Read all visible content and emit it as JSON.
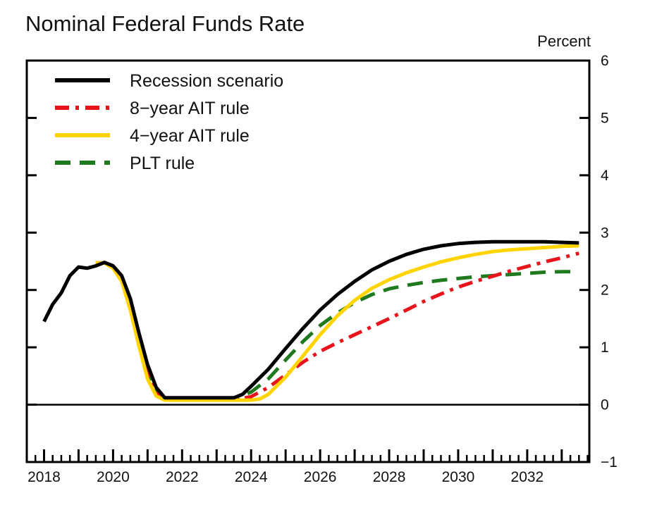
{
  "chart_data": {
    "type": "line",
    "title": "Nominal Federal Funds Rate",
    "ylabel": "Percent",
    "xlabel": "",
    "xlim": [
      2017.5,
      2033.8
    ],
    "ylim": [
      -1,
      6
    ],
    "x_tick_labels": [
      "2018",
      "2020",
      "2022",
      "2024",
      "2026",
      "2028",
      "2030",
      "2032"
    ],
    "x_tick_values": [
      2018,
      2020,
      2022,
      2024,
      2026,
      2028,
      2030,
      2032
    ],
    "y_tick_labels": [
      "−1",
      "0",
      "1",
      "2",
      "3",
      "4",
      "5",
      "6"
    ],
    "y_tick_values": [
      -1,
      0,
      1,
      2,
      3,
      4,
      5,
      6
    ],
    "y_axis_side": "right",
    "reference_line_y": 0,
    "legend_position": "top-left",
    "series": [
      {
        "name": "Recession scenario",
        "color": "#000000",
        "style": "solid",
        "x": [
          2018.0,
          2018.25,
          2018.5,
          2018.75,
          2019.0,
          2019.25,
          2019.5,
          2019.75,
          2020.0,
          2020.25,
          2020.5,
          2020.75,
          2021.0,
          2021.25,
          2021.5,
          2022.0,
          2022.5,
          2023.0,
          2023.25,
          2023.5,
          2023.75,
          2024.0,
          2024.5,
          2025.0,
          2025.5,
          2026.0,
          2026.5,
          2027.0,
          2027.5,
          2028.0,
          2028.5,
          2029.0,
          2029.5,
          2030.0,
          2030.5,
          2031.0,
          2031.5,
          2032.0,
          2032.5,
          2033.0,
          2033.5
        ],
        "y": [
          1.45,
          1.75,
          1.95,
          2.25,
          2.4,
          2.38,
          2.42,
          2.48,
          2.42,
          2.25,
          1.85,
          1.25,
          0.7,
          0.3,
          0.12,
          0.12,
          0.12,
          0.12,
          0.12,
          0.12,
          0.18,
          0.32,
          0.62,
          0.98,
          1.33,
          1.65,
          1.92,
          2.15,
          2.35,
          2.5,
          2.62,
          2.71,
          2.77,
          2.81,
          2.83,
          2.84,
          2.84,
          2.84,
          2.84,
          2.83,
          2.82
        ]
      },
      {
        "name": "8−year AIT rule",
        "color": "#e8141c",
        "style": "dashdot",
        "x": [
          2019.5,
          2019.75,
          2020.0,
          2020.25,
          2020.5,
          2020.75,
          2021.0,
          2021.25,
          2021.5,
          2022.0,
          2022.5,
          2023.0,
          2023.5,
          2023.75,
          2024.0,
          2024.5,
          2025.0,
          2025.5,
          2026.0,
          2026.5,
          2027.0,
          2027.5,
          2028.0,
          2028.5,
          2029.0,
          2029.5,
          2030.0,
          2030.5,
          2031.0,
          2031.5,
          2032.0,
          2032.5,
          2033.0,
          2033.5
        ],
        "y": [
          2.47,
          2.47,
          2.4,
          2.2,
          1.75,
          1.15,
          0.6,
          0.22,
          0.1,
          0.1,
          0.1,
          0.1,
          0.1,
          0.11,
          0.14,
          0.3,
          0.52,
          0.74,
          0.93,
          1.08,
          1.22,
          1.36,
          1.5,
          1.65,
          1.8,
          1.93,
          2.05,
          2.15,
          2.24,
          2.33,
          2.41,
          2.49,
          2.56,
          2.64
        ]
      },
      {
        "name": "4−year AIT rule",
        "color": "#ffd400",
        "style": "solid",
        "x": [
          2019.5,
          2019.75,
          2020.0,
          2020.25,
          2020.5,
          2020.75,
          2021.0,
          2021.25,
          2021.5,
          2022.0,
          2022.5,
          2023.0,
          2023.5,
          2024.0,
          2024.25,
          2024.5,
          2025.0,
          2025.5,
          2026.0,
          2026.5,
          2027.0,
          2027.5,
          2028.0,
          2028.5,
          2029.0,
          2029.5,
          2030.0,
          2030.5,
          2031.0,
          2031.5,
          2032.0,
          2032.5,
          2033.0,
          2033.5
        ],
        "y": [
          2.47,
          2.47,
          2.38,
          2.15,
          1.65,
          1.02,
          0.45,
          0.15,
          0.08,
          0.08,
          0.08,
          0.08,
          0.08,
          0.08,
          0.1,
          0.18,
          0.48,
          0.85,
          1.22,
          1.55,
          1.82,
          2.03,
          2.18,
          2.3,
          2.4,
          2.49,
          2.56,
          2.62,
          2.67,
          2.7,
          2.72,
          2.74,
          2.76,
          2.77
        ]
      },
      {
        "name": "PLT rule",
        "color": "#1f7a1f",
        "style": "dashed",
        "x": [
          2019.5,
          2019.75,
          2020.0,
          2020.25,
          2020.5,
          2020.75,
          2021.0,
          2021.25,
          2021.5,
          2022.0,
          2022.5,
          2023.0,
          2023.5,
          2024.0,
          2024.5,
          2025.0,
          2025.5,
          2026.0,
          2026.5,
          2027.0,
          2027.5,
          2028.0,
          2028.5,
          2029.0,
          2029.5,
          2030.0,
          2030.5,
          2031.0,
          2031.5,
          2032.0,
          2032.5,
          2033.0,
          2033.5
        ],
        "y": [
          2.47,
          2.47,
          2.4,
          2.2,
          1.72,
          1.1,
          0.55,
          0.2,
          0.1,
          0.1,
          0.1,
          0.1,
          0.1,
          0.22,
          0.45,
          0.78,
          1.1,
          1.38,
          1.6,
          1.78,
          1.92,
          2.02,
          2.08,
          2.13,
          2.17,
          2.2,
          2.23,
          2.25,
          2.27,
          2.29,
          2.31,
          2.32,
          2.32
        ]
      }
    ]
  }
}
